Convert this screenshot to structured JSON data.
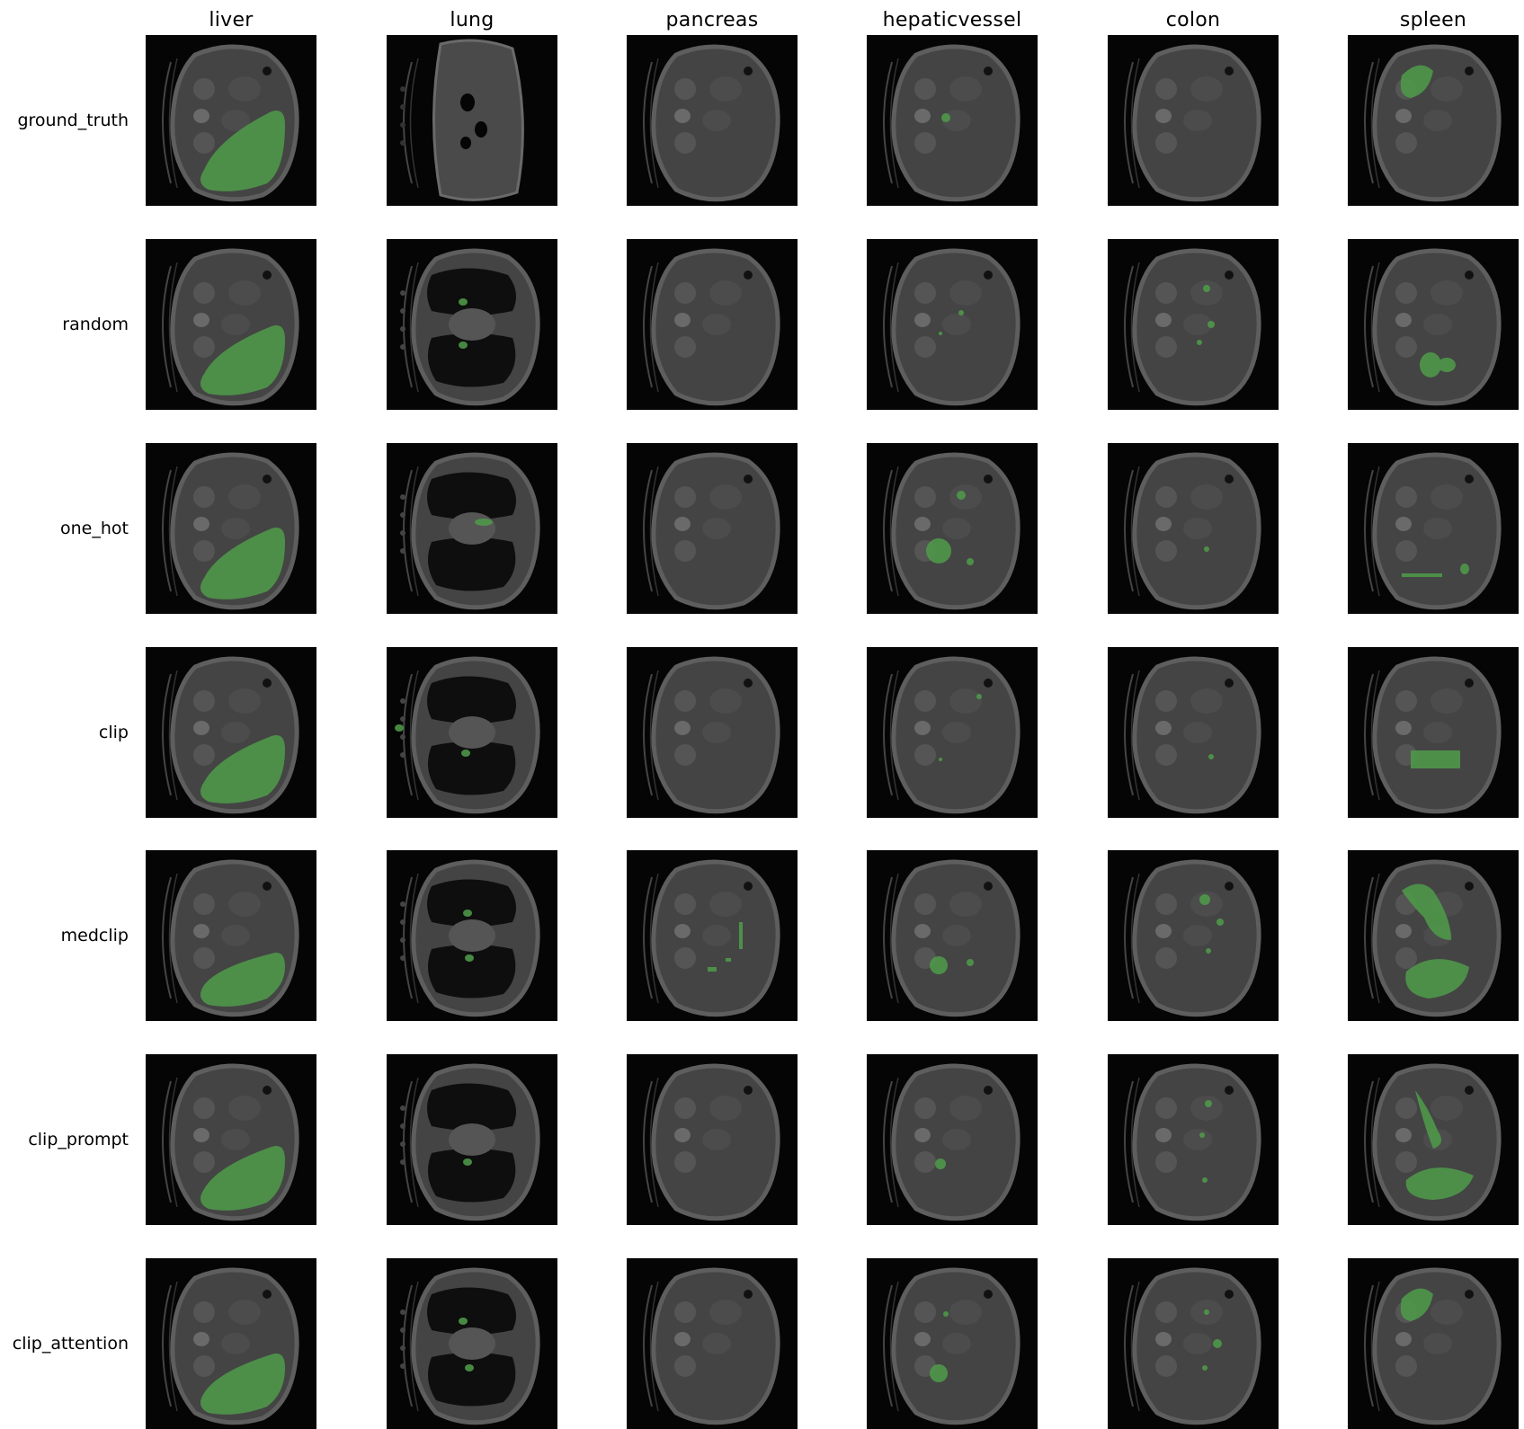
{
  "figure": {
    "columns": [
      "liver",
      "lung",
      "pancreas",
      "hepaticvessel",
      "colon",
      "spleen"
    ],
    "rows": [
      "ground_truth",
      "random",
      "one_hot",
      "clip",
      "medclip",
      "clip_prompt",
      "clip_attention"
    ],
    "mask_color": "#4f9a4a",
    "background_color": "#050505"
  }
}
